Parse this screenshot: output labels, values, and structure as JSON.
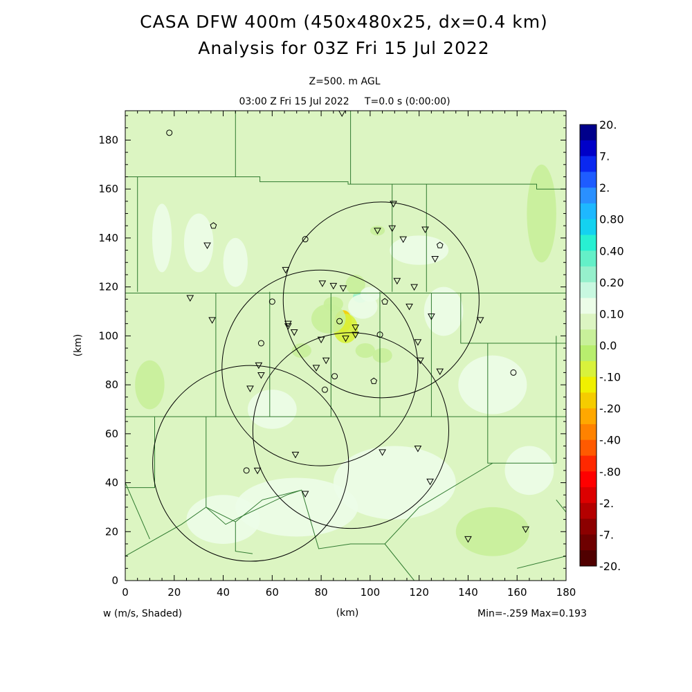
{
  "chart_data": {
    "type": "heatmap",
    "title": "CASA DFW 400m (450x480x25, dx=0.4 km)",
    "subtitle": "Analysis for 03Z Fri 15 Jul 2022",
    "level_label": "Z=500. m AGL",
    "time_label": "03:00 Z Fri 15 Jul 2022     T=0.0 s (0:00:00)",
    "variable_label": "w (m/s, Shaded)",
    "xlabel": "(km)",
    "ylabel": "(km)",
    "minmax_label": "Min=-.259 Max=0.193",
    "xlim": [
      0,
      180
    ],
    "ylim": [
      0,
      192
    ],
    "x_ticks": [
      0,
      20,
      40,
      60,
      80,
      100,
      120,
      140,
      160,
      180
    ],
    "y_ticks": [
      0,
      20,
      40,
      60,
      80,
      100,
      120,
      140,
      160,
      180
    ],
    "background_color": "#dcf5c2",
    "colorbar": {
      "labels": [
        "20.",
        "7.",
        "2.",
        "0.80",
        "0.40",
        "0.20",
        "0.10",
        "0.0",
        "-.10",
        "-.20",
        "-.40",
        "-.80",
        "-2.",
        "-7.",
        "-20."
      ],
      "colors": [
        "#00008b",
        "#0000c8",
        "#0a28f0",
        "#1e5cff",
        "#2a90ff",
        "#1eb8ff",
        "#14d2f0",
        "#28f0d2",
        "#64f0c8",
        "#96f0cc",
        "#c8f8e0",
        "#ecfde8",
        "#dcf5c2",
        "#c8f09a",
        "#b8ee6e",
        "#d8f23c",
        "#f0f000",
        "#f5cc00",
        "#ffa800",
        "#ff8200",
        "#ff5a00",
        "#ff2800",
        "#ff0000",
        "#dc0000",
        "#b40000",
        "#8c0000",
        "#6e0000",
        "#500000"
      ]
    },
    "radar_rings": [
      {
        "center": [
          104.5,
          114.7
        ],
        "radius": 40
      },
      {
        "center": [
          79.5,
          86.9
        ],
        "radius": 40
      },
      {
        "center": [
          92.1,
          61.3
        ],
        "radius": 40
      },
      {
        "center": [
          51.2,
          47.9
        ],
        "radius": 40
      }
    ],
    "features": [
      {
        "x": 89,
        "y": 106,
        "value": -0.259,
        "color": "#f5cc00",
        "rx": 3.5,
        "ry": 4.5
      },
      {
        "x": 90,
        "y": 103,
        "value": -0.15,
        "color": "#d8f23c",
        "rx": 5,
        "ry": 6
      },
      {
        "x": 83,
        "y": 107,
        "value": -0.12,
        "color": "#c8f09a",
        "rx": 7,
        "ry": 6
      },
      {
        "x": 96,
        "y": 116,
        "value": 0.12,
        "color": "#96f0cc",
        "rx": 3,
        "ry": 2.5
      },
      {
        "x": 94,
        "y": 121,
        "value": -0.12,
        "color": "#c8f09a",
        "rx": 4,
        "ry": 4
      },
      {
        "x": 100,
        "y": 117,
        "value": 0.06,
        "color": "#ecfde8",
        "rx": 4,
        "ry": 3
      },
      {
        "x": 97,
        "y": 112,
        "value": 0.06,
        "color": "#ecfde8",
        "rx": 6,
        "ry": 5
      },
      {
        "x": 85,
        "y": 113,
        "value": -0.11,
        "color": "#c8f09a",
        "rx": 4,
        "ry": 3
      },
      {
        "x": 98,
        "y": 94,
        "value": -0.11,
        "color": "#c8f09a",
        "rx": 4,
        "ry": 3
      },
      {
        "x": 105,
        "y": 92,
        "value": -0.11,
        "color": "#c8f09a",
        "rx": 4,
        "ry": 3
      },
      {
        "x": 103,
        "y": 143,
        "value": -0.11,
        "color": "#c8f09a",
        "rx": 3,
        "ry": 2
      },
      {
        "x": 72,
        "y": 94,
        "value": -0.11,
        "color": "#c8f09a",
        "rx": 4,
        "ry": 3
      },
      {
        "x": 30,
        "y": 138,
        "value": 0.05,
        "color": "#ecfde8",
        "rx": 6,
        "ry": 12
      },
      {
        "x": 45,
        "y": 130,
        "value": 0.05,
        "color": "#ecfde8",
        "rx": 5,
        "ry": 10
      },
      {
        "x": 15,
        "y": 140,
        "value": 0.05,
        "color": "#ecfde8",
        "rx": 4,
        "ry": 14
      },
      {
        "x": 120,
        "y": 135,
        "value": 0.05,
        "color": "#ecfde8",
        "rx": 12,
        "ry": 6
      },
      {
        "x": 130,
        "y": 110,
        "value": 0.05,
        "color": "#ecfde8",
        "rx": 8,
        "ry": 10
      },
      {
        "x": 110,
        "y": 40,
        "value": 0.05,
        "color": "#ecfde8",
        "rx": 25,
        "ry": 15
      },
      {
        "x": 70,
        "y": 30,
        "value": 0.05,
        "color": "#ecfde8",
        "rx": 25,
        "ry": 12
      },
      {
        "x": 150,
        "y": 80,
        "value": 0.05,
        "color": "#ecfde8",
        "rx": 14,
        "ry": 12
      },
      {
        "x": 165,
        "y": 45,
        "value": 0.05,
        "color": "#ecfde8",
        "rx": 10,
        "ry": 10
      },
      {
        "x": 60,
        "y": 70,
        "value": 0.05,
        "color": "#ecfde8",
        "rx": 10,
        "ry": 8
      },
      {
        "x": 40,
        "y": 25,
        "value": 0.05,
        "color": "#ecfde8",
        "rx": 15,
        "ry": 10
      },
      {
        "x": 170,
        "y": 150,
        "value": -0.11,
        "color": "#c8f09a",
        "rx": 6,
        "ry": 20
      },
      {
        "x": 10,
        "y": 80,
        "value": -0.11,
        "color": "#c8f09a",
        "rx": 6,
        "ry": 10
      },
      {
        "x": 150,
        "y": 20,
        "value": -0.11,
        "color": "#c8f09a",
        "rx": 15,
        "ry": 10
      }
    ],
    "county_borders": [
      [
        [
          0,
          165
        ],
        [
          55,
          165
        ],
        [
          55,
          163
        ],
        [
          91,
          163
        ],
        [
          91,
          162
        ],
        [
          168,
          162
        ],
        [
          168,
          160
        ],
        [
          180,
          160
        ]
      ],
      [
        [
          5,
          165
        ],
        [
          5,
          118
        ]
      ],
      [
        [
          0,
          117.5
        ],
        [
          180,
          117.5
        ]
      ],
      [
        [
          0,
          67
        ],
        [
          180,
          67
        ]
      ],
      [
        [
          45,
          192
        ],
        [
          45,
          165
        ]
      ],
      [
        [
          92,
          192
        ],
        [
          92,
          162
        ]
      ],
      [
        [
          123,
          162
        ],
        [
          123,
          118
        ]
      ],
      [
        [
          109,
          162
        ],
        [
          109,
          118
        ]
      ],
      [
        [
          137,
          117.5
        ],
        [
          137,
          97
        ],
        [
          180,
          97
        ]
      ],
      [
        [
          148,
          97
        ],
        [
          148,
          67
        ]
      ],
      [
        [
          37,
          117.5
        ],
        [
          37,
          67
        ]
      ],
      [
        [
          59,
          118
        ],
        [
          59,
          67
        ]
      ],
      [
        [
          84,
          117.5
        ],
        [
          84,
          67
        ]
      ],
      [
        [
          104,
          118
        ],
        [
          104,
          67
        ]
      ],
      [
        [
          125,
          117.5
        ],
        [
          125,
          67
        ]
      ],
      [
        [
          148,
          67
        ],
        [
          148,
          48
        ],
        [
          176,
          48
        ]
      ],
      [
        [
          176,
          100
        ],
        [
          176,
          48
        ]
      ],
      [
        [
          0,
          38
        ],
        [
          12,
          38
        ],
        [
          12,
          67
        ]
      ],
      [
        [
          33,
          67
        ],
        [
          33,
          30
        ],
        [
          41,
          23
        ],
        [
          47,
          26
        ],
        [
          66,
          35
        ],
        [
          72,
          37
        ],
        [
          79,
          13
        ],
        [
          92,
          15
        ],
        [
          106,
          15
        ],
        [
          120,
          30
        ],
        [
          140,
          42
        ],
        [
          150,
          48
        ]
      ],
      [
        [
          0,
          10
        ],
        [
          23,
          23
        ],
        [
          33,
          30
        ]
      ],
      [
        [
          0,
          40
        ],
        [
          10,
          17
        ]
      ],
      [
        [
          33,
          30
        ],
        [
          45,
          24
        ],
        [
          45,
          12
        ],
        [
          52,
          11
        ]
      ],
      [
        [
          72,
          37
        ],
        [
          56,
          33
        ],
        [
          45,
          24
        ]
      ],
      [
        [
          106,
          15
        ],
        [
          118,
          0
        ]
      ],
      [
        [
          176,
          33
        ],
        [
          180,
          28
        ]
      ],
      [
        [
          160,
          5
        ],
        [
          180,
          10
        ]
      ]
    ],
    "stations": [
      {
        "x": 18,
        "y": 183,
        "type": "circle"
      },
      {
        "x": 36,
        "y": 145,
        "type": "pentagon"
      },
      {
        "x": 33.5,
        "y": 137,
        "type": "triangle"
      },
      {
        "x": 73.5,
        "y": 139.5,
        "type": "circle"
      },
      {
        "x": 88.5,
        "y": 191,
        "type": "triangle"
      },
      {
        "x": 109.5,
        "y": 154,
        "type": "triangle"
      },
      {
        "x": 103,
        "y": 143,
        "type": "triangle"
      },
      {
        "x": 109,
        "y": 144,
        "type": "triangle"
      },
      {
        "x": 113.5,
        "y": 139.5,
        "type": "triangle"
      },
      {
        "x": 122.5,
        "y": 143.5,
        "type": "triangle"
      },
      {
        "x": 128.5,
        "y": 137,
        "type": "pentagon"
      },
      {
        "x": 126.5,
        "y": 131.5,
        "type": "triangle"
      },
      {
        "x": 65.5,
        "y": 127,
        "type": "triangle"
      },
      {
        "x": 80.5,
        "y": 121.5,
        "type": "triangle"
      },
      {
        "x": 85,
        "y": 120.5,
        "type": "triangle"
      },
      {
        "x": 89,
        "y": 119.5,
        "type": "triangle"
      },
      {
        "x": 111,
        "y": 122.5,
        "type": "triangle"
      },
      {
        "x": 118,
        "y": 120,
        "type": "triangle"
      },
      {
        "x": 60,
        "y": 114,
        "type": "circle"
      },
      {
        "x": 26.5,
        "y": 115.5,
        "type": "triangle"
      },
      {
        "x": 35.5,
        "y": 106.5,
        "type": "triangle"
      },
      {
        "x": 106,
        "y": 114,
        "type": "pentagon"
      },
      {
        "x": 116,
        "y": 112,
        "type": "triangle"
      },
      {
        "x": 125,
        "y": 108,
        "type": "triangle"
      },
      {
        "x": 145,
        "y": 106.5,
        "type": "triangle"
      },
      {
        "x": 87.5,
        "y": 106,
        "type": "circle"
      },
      {
        "x": 66.5,
        "y": 105,
        "type": "triangle"
      },
      {
        "x": 66.5,
        "y": 104,
        "type": "triangle"
      },
      {
        "x": 69,
        "y": 101.5,
        "type": "triangle"
      },
      {
        "x": 94,
        "y": 103.5,
        "type": "triangle"
      },
      {
        "x": 94,
        "y": 100.5,
        "type": "triangle"
      },
      {
        "x": 90,
        "y": 99,
        "type": "triangle"
      },
      {
        "x": 80,
        "y": 98.5,
        "type": "triangle"
      },
      {
        "x": 104,
        "y": 100.5,
        "type": "circle"
      },
      {
        "x": 55.5,
        "y": 97,
        "type": "circle"
      },
      {
        "x": 119.5,
        "y": 97.5,
        "type": "triangle"
      },
      {
        "x": 82,
        "y": 90,
        "type": "triangle"
      },
      {
        "x": 120.5,
        "y": 90,
        "type": "triangle"
      },
      {
        "x": 54.5,
        "y": 88,
        "type": "triangle"
      },
      {
        "x": 78,
        "y": 87,
        "type": "triangle"
      },
      {
        "x": 128.5,
        "y": 85.5,
        "type": "triangle"
      },
      {
        "x": 55.5,
        "y": 84,
        "type": "triangle"
      },
      {
        "x": 85.5,
        "y": 83.5,
        "type": "circle"
      },
      {
        "x": 101.5,
        "y": 81.5,
        "type": "pentagon"
      },
      {
        "x": 158.5,
        "y": 85,
        "type": "circle"
      },
      {
        "x": 51,
        "y": 78.5,
        "type": "triangle"
      },
      {
        "x": 81.5,
        "y": 78,
        "type": "circle"
      },
      {
        "x": 69.5,
        "y": 51.5,
        "type": "triangle"
      },
      {
        "x": 105,
        "y": 52.5,
        "type": "triangle"
      },
      {
        "x": 119.5,
        "y": 54,
        "type": "triangle"
      },
      {
        "x": 49.5,
        "y": 45,
        "type": "circle"
      },
      {
        "x": 54,
        "y": 45,
        "type": "triangle"
      },
      {
        "x": 124.5,
        "y": 40.5,
        "type": "triangle"
      },
      {
        "x": 73.5,
        "y": 35.5,
        "type": "triangle"
      },
      {
        "x": 140,
        "y": 17,
        "type": "triangle"
      },
      {
        "x": 163.5,
        "y": 21,
        "type": "triangle"
      }
    ]
  }
}
